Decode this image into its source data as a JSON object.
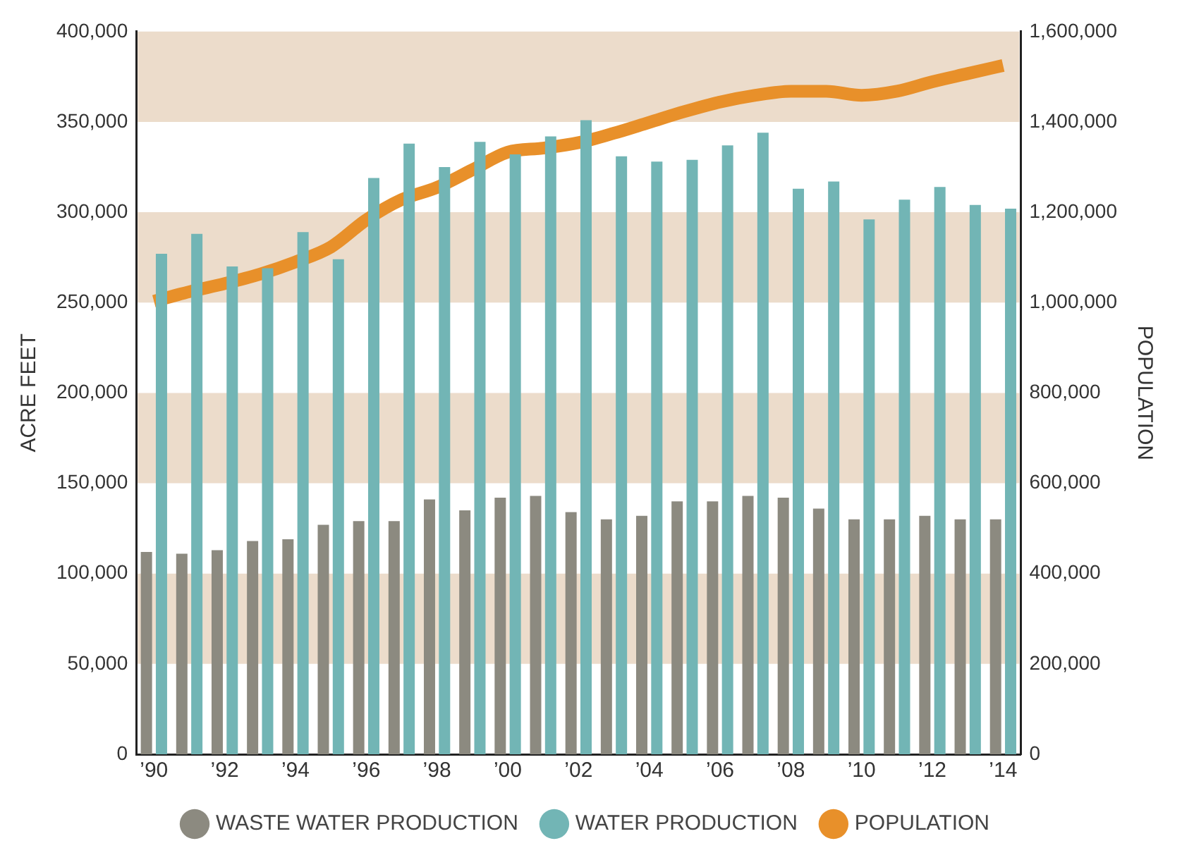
{
  "chart_data": {
    "type": "bar",
    "categories": [
      "’90",
      null,
      "’92",
      null,
      "’94",
      null,
      "’96",
      null,
      "’98",
      null,
      "’00",
      null,
      "’02",
      null,
      "’04",
      null,
      "’06",
      null,
      "’08",
      null,
      "’10",
      null,
      "’12",
      null,
      "’14"
    ],
    "series": [
      {
        "name": "WASTE WATER PRODUCTION",
        "color": "#8c8a80",
        "values": [
          112000,
          111000,
          113000,
          118000,
          119000,
          127000,
          129000,
          129000,
          141000,
          135000,
          142000,
          143000,
          134000,
          130000,
          132000,
          140000,
          140000,
          143000,
          142000,
          136000,
          130000,
          130000,
          132000,
          130000,
          130000
        ]
      },
      {
        "name": "WATER PRODUCTION",
        "color": "#72b5b5",
        "values": [
          277000,
          288000,
          270000,
          269000,
          289000,
          274000,
          319000,
          338000,
          325000,
          339000,
          332000,
          342000,
          351000,
          331000,
          328000,
          329000,
          337000,
          344000,
          313000,
          317000,
          296000,
          307000,
          314000,
          304000,
          302000
        ]
      },
      {
        "name": "POPULATION",
        "type": "line",
        "axis": "y2",
        "color": "#e8902a",
        "values": [
          1003000,
          1024000,
          1042000,
          1063000,
          1090000,
          1123000,
          1183000,
          1228000,
          1255000,
          1294000,
          1333000,
          1342000,
          1354000,
          1375000,
          1399000,
          1423000,
          1444000,
          1459000,
          1468000,
          1468000,
          1459000,
          1468000,
          1489000,
          1507000,
          1525000
        ]
      }
    ],
    "ylabel": "ACRE FEET",
    "y2label": "POPULATION",
    "ylim": [
      0,
      400000
    ],
    "yticks": [
      0,
      {
        "value": 50000,
        "label": "50,000"
      },
      {
        "value": 100000,
        "label": "100,000"
      },
      {
        "value": 150000,
        "label": "150,000"
      },
      {
        "value": 200000,
        "label": "200,000"
      },
      {
        "value": 250000,
        "label": "250,000"
      },
      {
        "value": 300000,
        "label": "300,000"
      },
      {
        "value": 350000,
        "label": "350,000"
      },
      {
        "value": 400000,
        "label": "400,000"
      }
    ],
    "y2lim": [
      0,
      1600000
    ],
    "y2ticks": [
      0,
      {
        "value": 200000,
        "label": "200,000"
      },
      {
        "value": 400000,
        "label": "400,000"
      },
      {
        "value": 600000,
        "label": "600,000"
      },
      {
        "value": 800000,
        "label": "800,000"
      },
      {
        "value": 1000000,
        "label": "1,000,000"
      },
      {
        "value": 1200000,
        "label": "1,200,000"
      },
      {
        "value": 1400000,
        "label": "1,400,000"
      },
      {
        "value": 1600000,
        "label": "1,600,000"
      }
    ],
    "bands": [
      {
        "axis": "y",
        "from": 50000,
        "to": 100000,
        "color": "#ecdccb"
      },
      {
        "axis": "y",
        "from": 150000,
        "to": 200000,
        "color": "#ecdccb"
      },
      {
        "axis": "y",
        "from": 250000,
        "to": 300000,
        "color": "#ecdccb"
      },
      {
        "axis": "y",
        "from": 350000,
        "to": 400000,
        "color": "#ecdccb"
      }
    ],
    "grid": false,
    "legend": "bottom",
    "marker": "none",
    "line_style": "solid"
  }
}
